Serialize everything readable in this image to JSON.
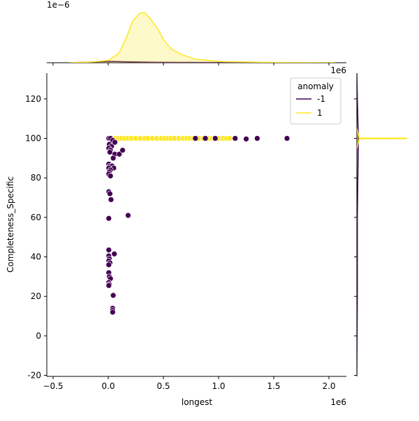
{
  "chart_data": [
    {
      "type": "scatter",
      "x_label": "longest",
      "y_label": "Completeness_Specific",
      "x_offset": "1e6",
      "xlim": [
        -557000,
        2158000
      ],
      "xticks": [
        {
          "value": -500000,
          "label": "−0.5"
        },
        {
          "value": 0,
          "label": "0.0"
        },
        {
          "value": 500000,
          "label": "0.5"
        },
        {
          "value": 1000000,
          "label": "1.0"
        },
        {
          "value": 1500000,
          "label": "1.5"
        },
        {
          "value": 2000000,
          "label": "2.0"
        }
      ],
      "ylim": [
        -20.5,
        133
      ],
      "yticks": [
        -20,
        0,
        20,
        40,
        60,
        80,
        100,
        120
      ],
      "legend_title": "anomaly",
      "legend": "upper right",
      "series": [
        {
          "name": "-1",
          "color": "#440154",
          "x": [
            5000,
            20000,
            40000,
            10000,
            30000,
            5000,
            20000,
            15000,
            60000,
            100000,
            130000,
            45000,
            5000,
            15000,
            35000,
            50000,
            5000,
            20000,
            10000,
            5000,
            20000,
            5000,
            15000,
            25000,
            5000,
            180000,
            5000,
            55000,
            5000,
            10000,
            5000,
            15000,
            5000,
            5000,
            10000,
            20000,
            5000,
            10000,
            5000,
            45000,
            40000,
            40000,
            40000,
            790000,
            880000,
            970000,
            1150000,
            1250000,
            1350000,
            1620000,
            60000
          ],
          "y": [
            100,
            100,
            99,
            97,
            96,
            95,
            94,
            93,
            92,
            92,
            94,
            90,
            87,
            86,
            86,
            85,
            85,
            84,
            83,
            82,
            81,
            73,
            72,
            69,
            59.5,
            61,
            43.5,
            41.5,
            40.5,
            39,
            38,
            37,
            36,
            32,
            30,
            29,
            27,
            26,
            25.5,
            20.5,
            14,
            13,
            12,
            100,
            100,
            100,
            100,
            99.7,
            100,
            100,
            98
          ]
        },
        {
          "name": "1",
          "color": "#fde725",
          "x": [
            60000,
            90000,
            120000,
            150000,
            180000,
            210000,
            250000,
            290000,
            330000,
            360000,
            400000,
            440000,
            480000,
            510000,
            540000,
            570000,
            600000,
            640000,
            680000,
            710000,
            740000,
            770000,
            820000,
            860000,
            900000,
            940000,
            960000,
            1000000,
            1040000,
            1070000,
            1100000
          ],
          "y": [
            100,
            100,
            100,
            100,
            100,
            100,
            100,
            100,
            100,
            100,
            100,
            100,
            100,
            100,
            100,
            100,
            100,
            100,
            100,
            100,
            100,
            100,
            100,
            100,
            100,
            100,
            100,
            100,
            100,
            100,
            100
          ]
        }
      ]
    },
    {
      "type": "area",
      "orient": "x",
      "y_offset": "1e−6",
      "xlim": [
        -557000,
        2158000
      ],
      "ylim": [
        0,
        2.4
      ],
      "series": [
        {
          "name": "-1",
          "color": "#440154",
          "x": [
            -348000,
            -158000,
            0,
            158000,
            443000,
            1000000,
            1620000,
            2057000
          ],
          "values": [
            0,
            0.03,
            0.06,
            0.04,
            0.02,
            0.01,
            0.005,
            0
          ]
        },
        {
          "name": "1",
          "color": "#fde725",
          "x": [
            -348000,
            -158000,
            0,
            95000,
            158000,
            222000,
            285000,
            329000,
            380000,
            443000,
            506000,
            570000,
            665000,
            791000,
            1044000,
            1551000,
            2057000
          ],
          "values": [
            0,
            0.03,
            0.1,
            0.4,
            1.0,
            1.8,
            2.12,
            2.16,
            1.9,
            1.5,
            0.95,
            0.6,
            0.35,
            0.15,
            0.05,
            0.01,
            0
          ]
        }
      ]
    },
    {
      "type": "area",
      "orient": "y",
      "xlim": [
        0,
        1
      ],
      "ylim": [
        -20.5,
        133
      ],
      "series": [
        {
          "name": "-1",
          "color": "#440154",
          "y": [
            -20,
            0,
            20,
            40,
            60,
            80,
            100,
            120,
            133
          ],
          "values": [
            0,
            0.005,
            0.01,
            0.01,
            0.01,
            0.02,
            0.03,
            0.01,
            0
          ]
        },
        {
          "name": "1",
          "color": "#fde725",
          "y": [
            95,
            99.8,
            100,
            100.2,
            105
          ],
          "values": [
            0,
            0.05,
            3,
            0.05,
            0
          ]
        }
      ]
    }
  ]
}
